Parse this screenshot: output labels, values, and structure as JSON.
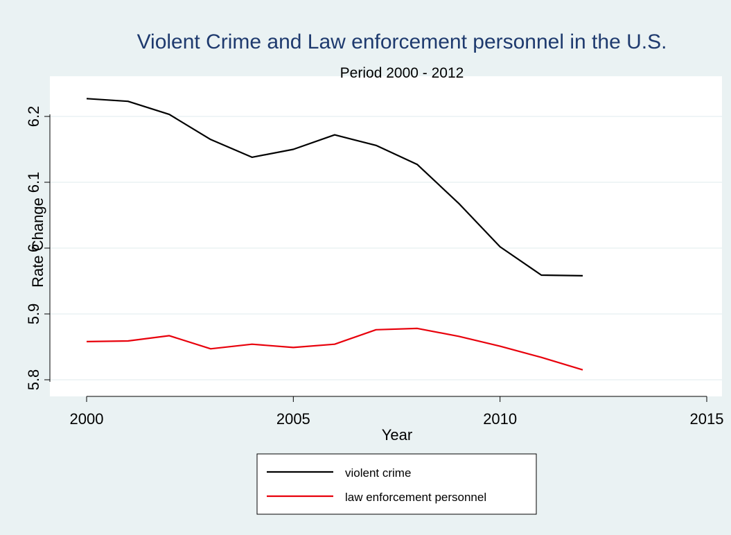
{
  "chart_data": {
    "type": "line",
    "title": "Violent Crime and Law enforcement personnel in the U.S.",
    "subtitle": "Period 2000 - 2012",
    "xlabel": "Year",
    "ylabel": "Rate Change",
    "xlim": [
      2000,
      2015
    ],
    "ylim": [
      5.79,
      6.24
    ],
    "x_ticks": [
      "2000",
      "2005",
      "2010",
      "2015"
    ],
    "y_ticks": [
      "5.8",
      "5.9",
      "6",
      "6.1",
      "6.2"
    ],
    "grid": true,
    "legend_position": "bottom",
    "x": [
      2000,
      2001,
      2002,
      2003,
      2004,
      2005,
      2006,
      2007,
      2008,
      2009,
      2010,
      2011,
      2012
    ],
    "series": [
      {
        "name": "violent crime",
        "color": "#000000",
        "values": [
          6.227,
          6.223,
          6.203,
          6.165,
          6.138,
          6.15,
          6.172,
          6.156,
          6.127,
          6.068,
          6.002,
          5.959,
          5.958
        ]
      },
      {
        "name": "law enforcement personnel",
        "color": "#e8000b",
        "values": [
          5.858,
          5.859,
          5.867,
          5.847,
          5.854,
          5.849,
          5.854,
          5.876,
          5.878,
          5.866,
          5.851,
          5.834,
          5.815
        ]
      }
    ],
    "colors": {
      "outer_background": "#eaf2f3",
      "plot_background": "#ffffff",
      "grid": "#eaf2f3",
      "title": "#1e3a6e",
      "text": "#000000"
    }
  }
}
